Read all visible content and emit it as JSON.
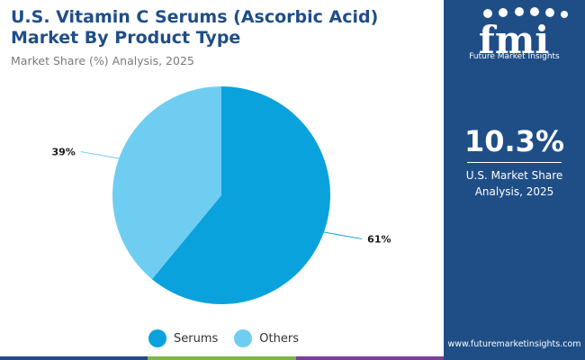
{
  "header": {
    "title": "U.S. Vitamin C Serums (Ascorbic Acid) Market By Product Type",
    "subtitle": "Market Share (%) Analysis, 2025"
  },
  "chart_data": {
    "type": "pie",
    "title": "U.S. Vitamin C Serums (Ascorbic Acid) Market By Product Type",
    "subtitle": "Market Share (%) Analysis, 2025",
    "slices": [
      {
        "label": "Serums",
        "value": 61,
        "display": "61%",
        "color": "#0aa2dd"
      },
      {
        "label": "Others",
        "value": 39,
        "display": "39%",
        "color": "#6fcdf2"
      }
    ],
    "legend_position": "bottom-center"
  },
  "side_panel": {
    "logo_text": "fmi",
    "logo_tagline": "Future Market Insights",
    "share_value": "10.3%",
    "share_caption_line1": "U.S. Market Share",
    "share_caption_line2": "Analysis, 2025",
    "website": "www.futuremarketinsights.com",
    "background_color": "#1f4e87"
  },
  "bottom_bar_colors": [
    "#1f4e87",
    "#7ab648",
    "#7b3f98"
  ]
}
